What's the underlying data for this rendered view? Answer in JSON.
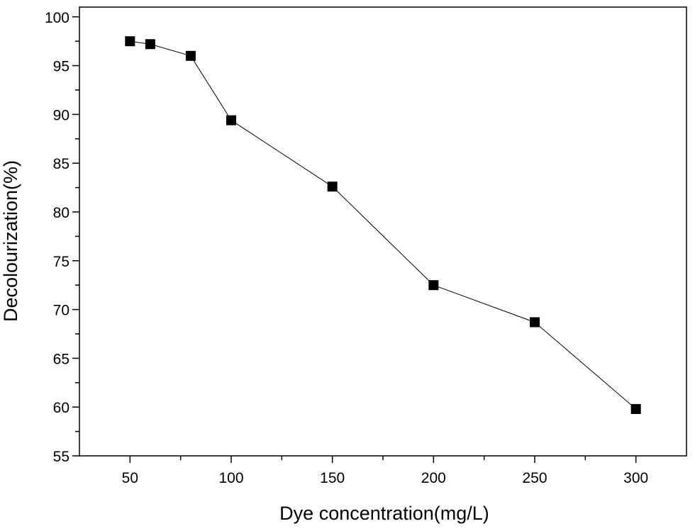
{
  "chart_data": {
    "type": "line",
    "title": "",
    "xlabel": "Dye concentration(mg/L)",
    "ylabel": "Decolourization(%)",
    "xlim": [
      25,
      325
    ],
    "ylim": [
      55,
      101
    ],
    "x_ticks": [
      50,
      100,
      150,
      200,
      250,
      300
    ],
    "x_tick_labels": [
      "50",
      "100",
      "150",
      "200",
      "250",
      "300"
    ],
    "x_minor_ticks": [
      75,
      125,
      175,
      225,
      275
    ],
    "y_ticks": [
      55,
      60,
      65,
      70,
      75,
      80,
      85,
      90,
      95,
      100
    ],
    "y_tick_labels": [
      "55",
      "60",
      "65",
      "70",
      "75",
      "80",
      "85",
      "90",
      "95",
      "100"
    ],
    "y_minor_ticks": [
      57.5,
      62.5,
      67.5,
      72.5,
      77.5,
      82.5,
      87.5,
      92.5,
      97.5
    ],
    "grid": false,
    "legend": "none",
    "series": [
      {
        "marker": "square",
        "color": "#000000",
        "x": [
          50,
          60,
          80,
          100,
          150,
          200,
          250,
          300
        ],
        "y": [
          97.5,
          97.2,
          96.0,
          89.4,
          82.6,
          72.5,
          68.7,
          59.8
        ]
      }
    ]
  }
}
